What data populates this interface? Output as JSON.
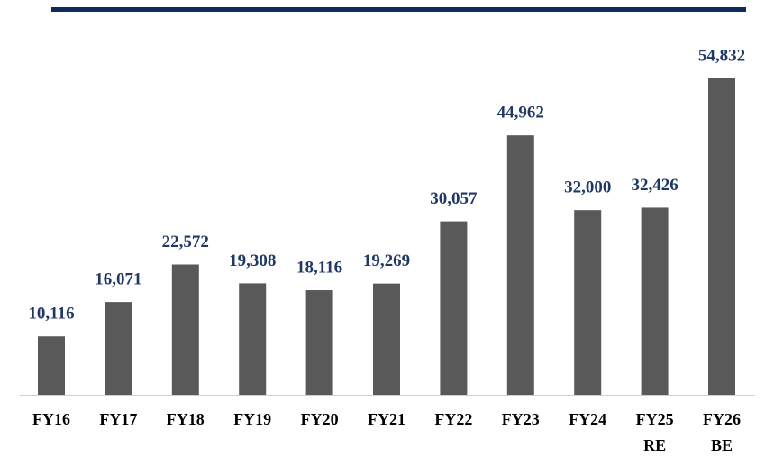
{
  "chart_data": {
    "type": "bar",
    "categories": [
      "FY16",
      "FY17",
      "FY18",
      "FY19",
      "FY20",
      "FY21",
      "FY22",
      "FY23",
      "FY24",
      "FY25 RE",
      "FY26 BE"
    ],
    "values": [
      10116,
      16071,
      22572,
      19308,
      18116,
      19269,
      30057,
      44962,
      32000,
      32426,
      54832
    ],
    "value_labels": [
      "10,116",
      "16,071",
      "22,572",
      "19,308",
      "18,116",
      "19,269",
      "30,057",
      "44,962",
      "32,000",
      "32,426",
      "54,832"
    ],
    "color": "#595959"
  }
}
